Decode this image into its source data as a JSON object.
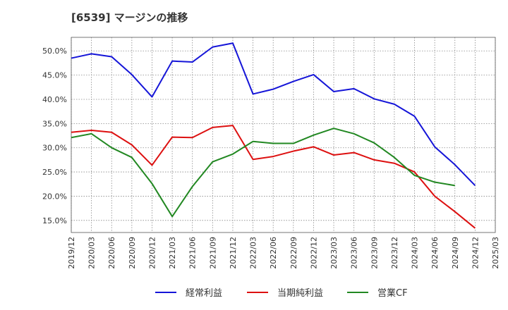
{
  "title": "[6539]  マージンの推移",
  "chart_data": {
    "type": "line",
    "title": "[6539]  マージンの推移",
    "x": [
      "2019/12",
      "2020/03",
      "2020/06",
      "2020/09",
      "2020/12",
      "2021/03",
      "2021/06",
      "2021/09",
      "2021/12",
      "2022/03",
      "2022/06",
      "2022/09",
      "2022/12",
      "2023/03",
      "2023/06",
      "2023/09",
      "2023/12",
      "2024/03",
      "2024/06",
      "2024/09",
      "2024/12"
    ],
    "x_ticks": [
      "2019/12",
      "2020/03",
      "2020/06",
      "2020/09",
      "2020/12",
      "2021/03",
      "2021/06",
      "2021/09",
      "2021/12",
      "2022/03",
      "2022/06",
      "2022/09",
      "2022/12",
      "2023/03",
      "2023/06",
      "2023/09",
      "2023/12",
      "2024/03",
      "2024/06",
      "2024/09",
      "2024/12",
      "2025/03"
    ],
    "y_ticks": [
      "15.0%",
      "20.0%",
      "25.0%",
      "30.0%",
      "35.0%",
      "40.0%",
      "45.0%",
      "50.0%"
    ],
    "y_tick_values": [
      15,
      20,
      25,
      30,
      35,
      40,
      45,
      50
    ],
    "ylim": [
      12.5,
      52.8
    ],
    "grid": true,
    "legend_position": "bottom",
    "series": [
      {
        "name": "経常利益",
        "color": "#1515d8",
        "values": [
          48.5,
          49.4,
          48.8,
          45.1,
          40.5,
          47.9,
          47.7,
          50.8,
          51.6,
          41.1,
          42.1,
          43.7,
          45.1,
          41.6,
          42.2,
          40.1,
          39.0,
          36.5,
          30.2,
          26.5,
          22.2
        ]
      },
      {
        "name": "当期純利益",
        "color": "#dd1010",
        "values": [
          33.2,
          33.6,
          33.2,
          30.6,
          26.4,
          32.2,
          32.1,
          34.2,
          34.6,
          27.6,
          28.2,
          29.3,
          30.2,
          28.5,
          29.0,
          27.5,
          26.8,
          25.0,
          20.0,
          16.8,
          13.4
        ]
      },
      {
        "name": "営業CF",
        "color": "#228822",
        "values": [
          32.1,
          32.9,
          30.0,
          28.0,
          22.6,
          15.8,
          22.0,
          27.1,
          28.7,
          31.3,
          30.9,
          30.9,
          32.6,
          34.0,
          32.9,
          31.0,
          28.0,
          24.3,
          22.9,
          22.2,
          null
        ]
      }
    ]
  }
}
